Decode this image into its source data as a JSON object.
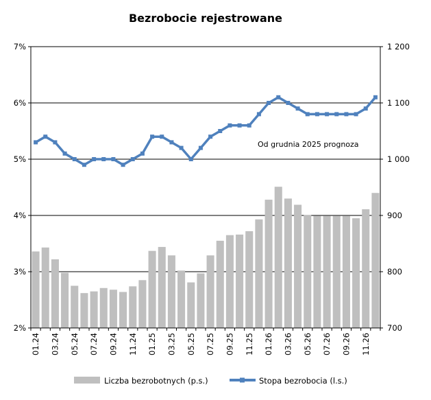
{
  "chart_data": {
    "type": "bar+line",
    "title": "Bezrobocie rejestrowane",
    "categories": [
      "01.24",
      "02.24",
      "03.24",
      "04.24",
      "05.24",
      "06.24",
      "07.24",
      "08.24",
      "09.24",
      "10.24",
      "11.24",
      "12.24",
      "01.25",
      "02.25",
      "03.25",
      "04.25",
      "05.25",
      "06.25",
      "07.25",
      "08.25",
      "09.25",
      "10.25",
      "11.25",
      "12.25",
      "01.26",
      "02.26",
      "03.26",
      "04.26",
      "05.26",
      "06.26",
      "07.26",
      "08.26",
      "09.26",
      "10.26",
      "11.26",
      "12.26"
    ],
    "x_tick_labels": [
      "01.24",
      "03.24",
      "05.24",
      "07.24",
      "09.24",
      "11.24",
      "01.25",
      "03.25",
      "05.25",
      "07.25",
      "09.25",
      "11.25",
      "01.26",
      "03.26",
      "05.26",
      "07.26",
      "09.26",
      "11.26"
    ],
    "series": [
      {
        "name": "Liczba bezrobotnych (p.s.)",
        "type": "bar",
        "axis": "right",
        "color": "#bfbfbf",
        "values": [
          836,
          843,
          822,
          798,
          775,
          762,
          765,
          771,
          768,
          764,
          774,
          785,
          837,
          844,
          829,
          802,
          781,
          797,
          829,
          855,
          865,
          866,
          872,
          893,
          928,
          951,
          930,
          919,
          901,
          899,
          899,
          899,
          899,
          895,
          911,
          940
        ]
      },
      {
        "name": "Stopa bezrobocia (l.s.)",
        "type": "line",
        "axis": "left",
        "color": "#4f81bd",
        "values": [
          5.3,
          5.4,
          5.3,
          5.1,
          5.0,
          4.9,
          5.0,
          5.0,
          5.0,
          4.9,
          5.0,
          5.1,
          5.4,
          5.4,
          5.3,
          5.2,
          5.0,
          5.2,
          5.4,
          5.5,
          5.6,
          5.6,
          5.6,
          5.8,
          6.0,
          6.1,
          6.0,
          5.9,
          5.8,
          5.8,
          5.8,
          5.8,
          5.8,
          5.8,
          5.9,
          6.1
        ]
      }
    ],
    "y_left": {
      "min": 2,
      "max": 7,
      "ticks": [
        "2%",
        "3%",
        "4%",
        "5%",
        "6%",
        "7%"
      ]
    },
    "y_right": {
      "min": 700,
      "max": 1200,
      "ticks": [
        "700",
        "800",
        "900",
        "1 000",
        "1 100",
        "1 200"
      ]
    },
    "annotation": "Od grudnia 2025 prognoza",
    "grid": "horizontal",
    "legend_position": "bottom"
  }
}
